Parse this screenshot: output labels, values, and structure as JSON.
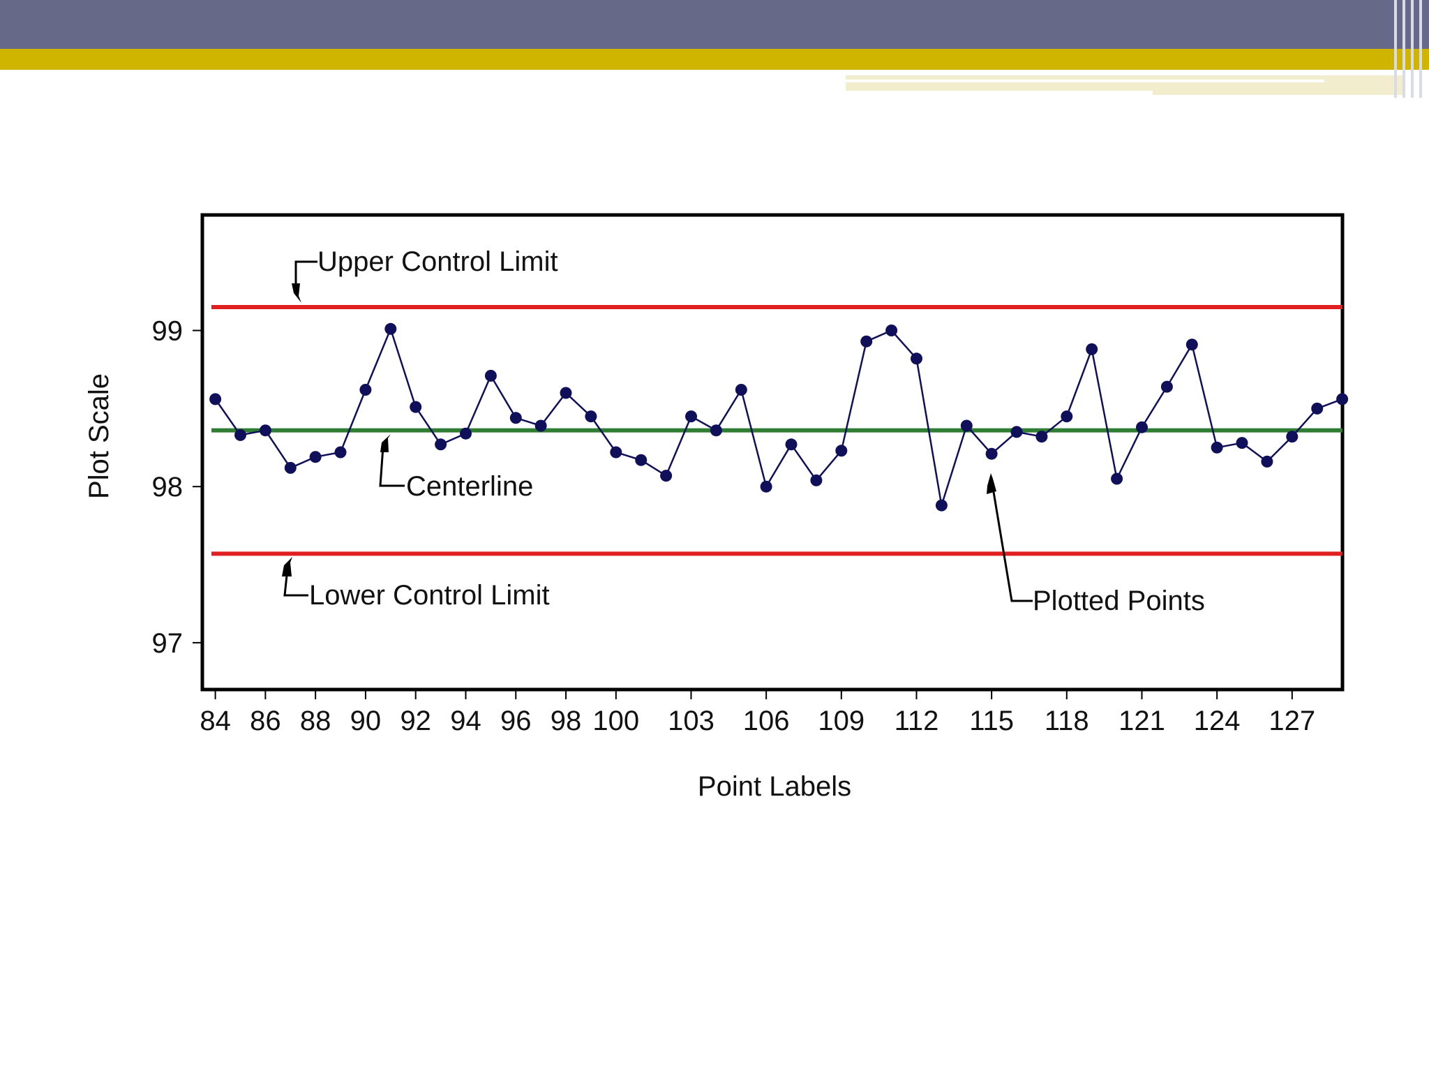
{
  "theme": {
    "header_color": "#666a88",
    "accent_color": "#cfb400",
    "ucl_color": "#e02020",
    "center_color": "#2e7d32",
    "point_color": "#10105a"
  },
  "chart_data": {
    "type": "line",
    "title": "",
    "xlabel": "Point Labels",
    "ylabel": "Plot Scale",
    "x_range": [
      83.9,
      128.9
    ],
    "ylim": [
      96.7,
      99.74
    ],
    "x_ticks": [
      84,
      86,
      88,
      90,
      92,
      94,
      96,
      98,
      100,
      103,
      106,
      109,
      112,
      115,
      118,
      121,
      124,
      127
    ],
    "y_ticks": [
      97,
      98,
      99
    ],
    "x_minor_ticks": [
      84,
      86,
      88,
      90,
      92,
      94,
      96,
      98,
      100,
      103,
      106,
      109,
      112,
      115,
      118,
      121,
      124,
      127
    ],
    "grid": false,
    "control_limits": {
      "ucl": 99.15,
      "center": 98.36,
      "lcl": 97.57
    },
    "series": [
      {
        "x": [
          84,
          85,
          86,
          87,
          88,
          89,
          90,
          91,
          92,
          93,
          94,
          95,
          96,
          97,
          98,
          99,
          100,
          101,
          102,
          103,
          104,
          105,
          106,
          107,
          108,
          109,
          110,
          111,
          112,
          113,
          114,
          115,
          116,
          117,
          118,
          119,
          120,
          121,
          122,
          123,
          124,
          125,
          126,
          127,
          128,
          129
        ],
        "values": [
          98.56,
          98.33,
          98.36,
          98.12,
          98.19,
          98.22,
          98.62,
          99.01,
          98.51,
          98.27,
          98.34,
          98.71,
          98.44,
          98.39,
          98.6,
          98.45,
          98.22,
          98.17,
          98.07,
          98.45,
          98.36,
          98.62,
          98.0,
          98.27,
          98.04,
          98.23,
          98.93,
          99.0,
          98.82,
          97.88,
          98.39,
          98.21,
          98.35,
          98.32,
          98.45,
          98.88,
          98.05,
          98.38,
          98.64,
          98.91,
          98.25,
          98.28,
          98.16,
          98.32,
          98.5,
          98.56
        ]
      }
    ],
    "annotations": [
      {
        "id": "ucl",
        "text": "Upper Control Limit"
      },
      {
        "id": "center",
        "text": "Centerline"
      },
      {
        "id": "lcl",
        "text": "Lower Control Limit"
      },
      {
        "id": "points",
        "text": "Plotted Points"
      }
    ]
  }
}
